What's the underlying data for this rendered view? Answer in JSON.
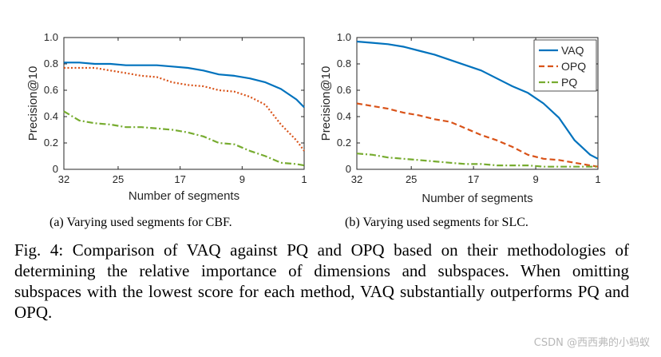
{
  "chart_data": [
    {
      "type": "line",
      "id": "cbf",
      "xlabel": "Number of segments",
      "ylabel": "Precision@10",
      "x_ticks": [
        "32",
        "25",
        "17",
        "9",
        "1"
      ],
      "y_ticks": [
        "0",
        "0.2",
        "0.4",
        "0.6",
        "0.8",
        "1.0"
      ],
      "xlim": [
        32,
        1
      ],
      "ylim": [
        0,
        1
      ],
      "x": [
        32,
        30,
        28,
        26,
        24,
        22,
        20,
        18,
        16,
        14,
        12,
        10,
        8,
        6,
        4,
        2,
        1
      ],
      "series": [
        {
          "name": "VAQ",
          "color": "#0072BD",
          "dash": "solid",
          "values": [
            0.81,
            0.81,
            0.8,
            0.8,
            0.79,
            0.79,
            0.79,
            0.78,
            0.77,
            0.75,
            0.72,
            0.71,
            0.69,
            0.66,
            0.61,
            0.53,
            0.47
          ]
        },
        {
          "name": "OPQ",
          "color": "#D95319",
          "dash": "dot",
          "values": [
            0.77,
            0.77,
            0.77,
            0.75,
            0.73,
            0.71,
            0.7,
            0.66,
            0.64,
            0.63,
            0.6,
            0.59,
            0.55,
            0.49,
            0.34,
            0.22,
            0.14
          ]
        },
        {
          "name": "PQ",
          "color": "#77AC30",
          "dash": "dashdot",
          "values": [
            0.44,
            0.37,
            0.35,
            0.34,
            0.32,
            0.32,
            0.31,
            0.3,
            0.28,
            0.25,
            0.2,
            0.19,
            0.14,
            0.1,
            0.05,
            0.04,
            0.03
          ]
        }
      ]
    },
    {
      "type": "line",
      "id": "slc",
      "xlabel": "Number of segments",
      "ylabel": "Precision@10",
      "x_ticks": [
        "32",
        "25",
        "17",
        "9",
        "1"
      ],
      "y_ticks": [
        "0",
        "0.2",
        "0.4",
        "0.6",
        "0.8",
        "1.0"
      ],
      "xlim": [
        32,
        1
      ],
      "ylim": [
        0,
        1
      ],
      "legend": [
        "VAQ",
        "OPQ",
        "PQ"
      ],
      "legend_position": "top-right",
      "x": [
        32,
        30,
        28,
        26,
        24,
        22,
        20,
        18,
        16,
        14,
        12,
        10,
        8,
        6,
        4,
        2,
        1
      ],
      "series": [
        {
          "name": "VAQ",
          "color": "#0072BD",
          "dash": "solid",
          "values": [
            0.97,
            0.96,
            0.95,
            0.93,
            0.9,
            0.87,
            0.83,
            0.79,
            0.75,
            0.69,
            0.63,
            0.58,
            0.5,
            0.39,
            0.22,
            0.11,
            0.08
          ]
        },
        {
          "name": "OPQ",
          "color": "#D95319",
          "dash": "dash",
          "values": [
            0.5,
            0.48,
            0.46,
            0.43,
            0.41,
            0.38,
            0.36,
            0.31,
            0.26,
            0.22,
            0.17,
            0.11,
            0.08,
            0.07,
            0.05,
            0.03,
            0.02
          ]
        },
        {
          "name": "PQ",
          "color": "#77AC30",
          "dash": "dashdot",
          "values": [
            0.12,
            0.11,
            0.09,
            0.08,
            0.07,
            0.06,
            0.05,
            0.04,
            0.04,
            0.03,
            0.03,
            0.03,
            0.02,
            0.02,
            0.02,
            0.02,
            0.02
          ]
        }
      ]
    }
  ],
  "subcaptions": {
    "left": "(a) Varying used segments for CBF.",
    "right": "(b) Varying used segments for SLC."
  },
  "caption": "Fig. 4: Comparison of VAQ against PQ and OPQ based on their methodologies of determining the relative importance of dimensions and subspaces. When omitting subspaces with the lowest score for each method, VAQ substantially outperforms PQ and OPQ.",
  "watermark": "CSDN @西西弗的小蚂蚁"
}
